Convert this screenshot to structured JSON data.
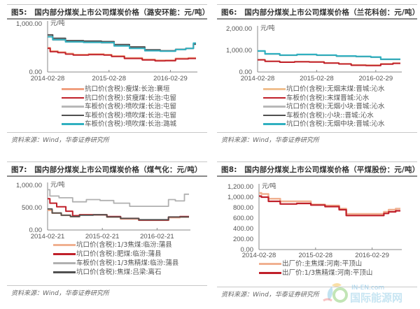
{
  "chart_data": [
    {
      "id": "fig5",
      "type": "line",
      "title": "图5:　国内部分煤炭上市公司煤炭价格（潞安环能：元/吨）",
      "ylabel": "元/吨",
      "ylim": [
        0,
        1000
      ],
      "yticks": [
        "1,000.00",
        "0.00"
      ],
      "ytick_values": [
        1000,
        0
      ],
      "xticks": [
        "2014-02-28",
        "2015-02-28",
        "2016-02-29"
      ],
      "xtick_positions": [
        0,
        12,
        24
      ],
      "x_range": [
        0,
        29
      ],
      "series": [
        {
          "name": "抗口价(含税):瘦煤:长治:襄垣",
          "color": "#f0a080",
          "width": 2.5,
          "values": [
            [
              0,
              500
            ],
            [
              1,
              430
            ],
            [
              3,
              410
            ],
            [
              4,
              380
            ],
            [
              6,
              360
            ],
            [
              10,
              370
            ],
            [
              12,
              360
            ],
            [
              13,
              330
            ],
            [
              17,
              290
            ],
            [
              20,
              260
            ],
            [
              22,
              240
            ],
            [
              24,
              240
            ],
            [
              26,
              280
            ],
            [
              29,
              290
            ]
          ]
        },
        {
          "name": "抗口价(含税):贫瘦煤:长治:屯留",
          "color": "#c0202a",
          "width": 1.8,
          "values": [
            [
              0,
              490
            ],
            [
              1,
              420
            ],
            [
              3,
              400
            ],
            [
              4,
              370
            ],
            [
              6,
              350
            ],
            [
              10,
              360
            ],
            [
              12,
              350
            ],
            [
              13,
              320
            ],
            [
              17,
              280
            ],
            [
              20,
              250
            ],
            [
              22,
              230
            ],
            [
              24,
              235
            ],
            [
              26,
              270
            ],
            [
              29,
              280
            ]
          ]
        },
        {
          "name": "车板价(含税):喷吹煤:长治:屯留",
          "color": "#b8b8b8",
          "width": 1.5,
          "values": [
            [
              0,
              740
            ],
            [
              2,
              660
            ],
            [
              5,
              620
            ],
            [
              9,
              610
            ],
            [
              12,
              600
            ],
            [
              14,
              540
            ],
            [
              18,
              500
            ],
            [
              20,
              450
            ],
            [
              24,
              430
            ],
            [
              26,
              470
            ],
            [
              28,
              490
            ],
            [
              29,
              570
            ]
          ]
        },
        {
          "name": "车板价(含税):喷吹煤:长治:屯留",
          "color": "#505050",
          "width": 2,
          "values": [
            [
              0,
              770
            ],
            [
              2,
              700
            ],
            [
              5,
              650
            ],
            [
              9,
              640
            ],
            [
              12,
              630
            ],
            [
              14,
              570
            ],
            [
              18,
              520
            ],
            [
              20,
              460
            ],
            [
              24,
              440
            ],
            [
              26,
              470
            ],
            [
              28,
              490
            ],
            [
              29,
              580
            ]
          ]
        },
        {
          "name": "车板价(含税):喷吹煤:长治:潞城",
          "color": "#30b0c0",
          "width": 2,
          "values": [
            [
              0,
              730
            ],
            [
              2,
              670
            ],
            [
              5,
              625
            ],
            [
              9,
              615
            ],
            [
              12,
              610
            ],
            [
              14,
              540
            ],
            [
              18,
              490
            ],
            [
              20,
              440
            ],
            [
              24,
              430
            ],
            [
              26,
              465
            ],
            [
              28,
              490
            ],
            [
              29,
              600
            ]
          ]
        }
      ],
      "source": "资料来源：Wind，华泰证券研究所"
    },
    {
      "id": "fig6",
      "type": "line",
      "title": "图6:　国内部分煤炭上市公司煤炭价格（兰花科创：元/吨）",
      "ylabel": "元/吨",
      "ylim": [
        0,
        2000
      ],
      "yticks": [
        "2,000.00",
        "1,000.00",
        "0.00"
      ],
      "ytick_values": [
        2000,
        1000,
        0
      ],
      "xticks": [
        "2014-02-28",
        "2015-02-28",
        "2016-02-29"
      ],
      "xtick_positions": [
        0,
        12,
        24
      ],
      "x_range": [
        0,
        29
      ],
      "series": [
        {
          "name": "坑口价(含税):无烟末煤:晋城:沁水",
          "color": "#f0c090",
          "width": 2,
          "values": [
            [
              0,
              570
            ],
            [
              3,
              500
            ],
            [
              6,
              460
            ],
            [
              9,
              480
            ],
            [
              12,
              470
            ],
            [
              15,
              420
            ],
            [
              18,
              380
            ],
            [
              20,
              330
            ],
            [
              24,
              320
            ],
            [
              26,
              380
            ],
            [
              29,
              410
            ]
          ]
        },
        {
          "name": "车板价(含税):末煤晋城:沁水",
          "color": "#c0202a",
          "width": 2,
          "values": [
            [
              0,
              560
            ],
            [
              3,
              490
            ],
            [
              6,
              450
            ],
            [
              9,
              470
            ],
            [
              12,
              460
            ],
            [
              15,
              410
            ],
            [
              18,
              370
            ],
            [
              20,
              310
            ],
            [
              24,
              300
            ],
            [
              26,
              360
            ],
            [
              29,
              400
            ]
          ]
        },
        {
          "name": "坑口价(含税):无烟小块:晋城:沁水",
          "color": "#b8b8b8",
          "width": 1.5,
          "values": [
            [
              0,
              950
            ],
            [
              3,
              820
            ],
            [
              6,
              760
            ],
            [
              10,
              790
            ],
            [
              14,
              760
            ],
            [
              18,
              720
            ],
            [
              22,
              700
            ],
            [
              24,
              670
            ],
            [
              26,
              570
            ],
            [
              29,
              570
            ]
          ]
        },
        {
          "name": "车板价(含税):小块::晋城:沁水",
          "color": "#505050",
          "width": 1.5,
          "values": [
            [
              0,
              960
            ],
            [
              3,
              830
            ],
            [
              6,
              770
            ],
            [
              10,
              800
            ],
            [
              14,
              770
            ],
            [
              18,
              730
            ],
            [
              22,
              710
            ],
            [
              24,
              680
            ],
            [
              26,
              580
            ],
            [
              29,
              580
            ]
          ]
        },
        {
          "name": "坑口价(含税):无烟中块:晋城:沁水",
          "color": "#30b0c0",
          "width": 2.2,
          "values": [
            [
              0,
              970
            ],
            [
              3,
              840
            ],
            [
              6,
              780
            ],
            [
              10,
              810
            ],
            [
              14,
              780
            ],
            [
              18,
              740
            ],
            [
              22,
              720
            ],
            [
              24,
              690
            ],
            [
              26,
              590
            ],
            [
              29,
              590
            ]
          ]
        }
      ],
      "source": "资料来源：Wind，华泰证券研究所"
    },
    {
      "id": "fig7",
      "type": "line",
      "title": "图7:　国内部分煤炭上市公司煤炭价格（煤气化：元/吨）",
      "ylabel": "元/吨",
      "ylim": [
        0,
        1000
      ],
      "yticks": [
        "1,000.00",
        "500.00",
        "0.00"
      ],
      "ytick_values": [
        1000,
        500,
        0
      ],
      "xticks": [
        "2014-02-21",
        "2015-02-21",
        "2016-02-21"
      ],
      "xtick_positions": [
        0,
        12,
        24
      ],
      "x_range": [
        0,
        31
      ],
      "series": [
        {
          "name": "坑口价(含税):1/3焦煤:临汾:蒲县",
          "color": "#f0b090",
          "width": 2.5,
          "values": [
            [
              0,
              440
            ],
            [
              2,
              380
            ],
            [
              4,
              330
            ],
            [
              6,
              300
            ],
            [
              8,
              340
            ],
            [
              12,
              340
            ],
            [
              14,
              290
            ],
            [
              18,
              250
            ],
            [
              22,
              220
            ],
            [
              26,
              220
            ],
            [
              27,
              280
            ],
            [
              31,
              290
            ]
          ]
        },
        {
          "name": "坑口价(含税):肥煤:临汾:蒲县",
          "color": "#c0202a",
          "width": 2,
          "values": [
            [
              0,
              700
            ],
            [
              1,
              600
            ],
            [
              3,
              520
            ],
            [
              5,
              420
            ],
            [
              6,
              320
            ],
            [
              8,
              340
            ],
            [
              12,
              340
            ],
            [
              14,
              300
            ],
            [
              18,
              260
            ],
            [
              22,
              220
            ],
            [
              26,
              220
            ],
            [
              27,
              290
            ],
            [
              31,
              300
            ]
          ]
        },
        {
          "name": "车板价(含税):1/3焦精煤:临汾:蒲县",
          "color": "#b0b0b0",
          "width": 1.8,
          "values": [
            [
              0,
              900
            ],
            [
              1,
              760
            ],
            [
              4,
              720
            ],
            [
              7,
              630
            ],
            [
              10,
              680
            ],
            [
              13,
              660
            ],
            [
              16,
              600
            ],
            [
              20,
              530
            ],
            [
              26,
              530
            ],
            [
              27,
              680
            ],
            [
              29,
              650
            ],
            [
              31,
              800
            ]
          ]
        },
        {
          "name": "坑口价(含税):焦煤:吕梁:离石",
          "color": "#505050",
          "width": 1.8,
          "values": [
            [
              0,
              470
            ],
            [
              2,
              380
            ],
            [
              4,
              330
            ],
            [
              6,
              300
            ],
            [
              8,
              330
            ],
            [
              12,
              340
            ],
            [
              14,
              290
            ],
            [
              18,
              260
            ],
            [
              22,
              230
            ],
            [
              26,
              230
            ],
            [
              27,
              290
            ],
            [
              31,
              290
            ]
          ]
        }
      ],
      "source": "资料来源：Wind，华泰证券研究所"
    },
    {
      "id": "fig8",
      "type": "line",
      "title": "图8:　国内部分煤炭上市公司煤炭价格（平煤股份：元/吨）",
      "ylabel": "元/吨",
      "ylim": [
        0,
        1200
      ],
      "yticks": [
        "1,200.00",
        "1,000.00",
        "800.00",
        "600.00",
        "400.00",
        "200.00",
        "0.00"
      ],
      "ytick_values": [
        1200,
        1000,
        800,
        600,
        400,
        200,
        0
      ],
      "xticks": [
        "2014-02-28",
        "2015-02-28",
        "2016-02-29"
      ],
      "xtick_positions": [
        0,
        12,
        24
      ],
      "x_range": [
        0,
        30
      ],
      "series": [
        {
          "name": "出厂价:主焦煤:河南:平顶山",
          "color": "#f0b090",
          "width": 2.5,
          "values": [
            [
              0,
              1080
            ],
            [
              1,
              1060
            ],
            [
              3,
              970
            ],
            [
              6,
              920
            ],
            [
              10,
              920
            ],
            [
              12,
              860
            ],
            [
              16,
              840
            ],
            [
              18,
              780
            ],
            [
              19,
              680
            ],
            [
              26,
              680
            ],
            [
              27,
              720
            ],
            [
              28,
              760
            ],
            [
              30,
              780
            ]
          ]
        },
        {
          "name": "出厂价:1/3焦精煤:河南:平顶山",
          "color": "#c0202a",
          "width": 2.2,
          "values": [
            [
              0,
              1020
            ],
            [
              1,
              1000
            ],
            [
              3,
              920
            ],
            [
              6,
              870
            ],
            [
              10,
              880
            ],
            [
              12,
              850
            ],
            [
              16,
              820
            ],
            [
              18,
              760
            ],
            [
              19,
              650
            ],
            [
              26,
              650
            ],
            [
              27,
              690
            ],
            [
              28,
              720
            ],
            [
              30,
              740
            ]
          ]
        }
      ],
      "source": "资料来源：Wind，华泰证券研究所"
    }
  ],
  "watermark": {
    "brand_en": "IN-EN.com",
    "brand_cn": "国际能源网"
  }
}
